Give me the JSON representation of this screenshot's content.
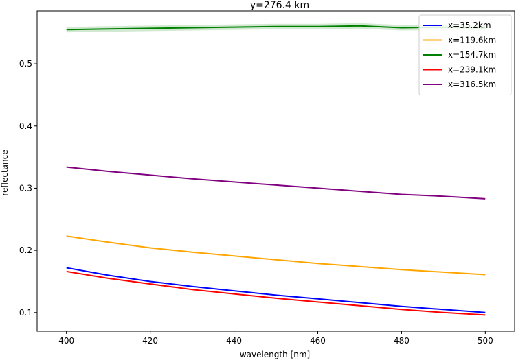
{
  "chart_data": {
    "type": "line",
    "title": "y=276.4 km",
    "xlabel": "wavelength [nm]",
    "ylabel": "reflectance",
    "xlim": [
      393,
      507
    ],
    "ylim": [
      0.07,
      0.585
    ],
    "xticks": [
      400,
      420,
      440,
      460,
      480,
      500
    ],
    "yticks": [
      0.1,
      0.2,
      0.3,
      0.4,
      0.5
    ],
    "grid": false,
    "legend_position": "top-right",
    "x": [
      400,
      410,
      420,
      430,
      440,
      450,
      460,
      470,
      480,
      490,
      500
    ],
    "series": [
      {
        "name": "x=35.2km",
        "color": "#0000ff",
        "values": [
          0.172,
          0.16,
          0.15,
          0.142,
          0.135,
          0.128,
          0.122,
          0.116,
          0.11,
          0.105,
          0.1
        ]
      },
      {
        "name": "x=119.6km",
        "color": "#ffa500",
        "values": [
          0.223,
          0.213,
          0.204,
          0.197,
          0.191,
          0.185,
          0.179,
          0.174,
          0.169,
          0.165,
          0.161
        ]
      },
      {
        "name": "x=154.7km",
        "color": "#008000",
        "values": [
          0.555,
          0.556,
          0.557,
          0.558,
          0.559,
          0.56,
          0.56,
          0.561,
          0.558,
          0.559,
          0.558
        ]
      },
      {
        "name": "x=239.1km",
        "color": "#ff0000",
        "values": [
          0.166,
          0.155,
          0.146,
          0.137,
          0.13,
          0.123,
          0.117,
          0.111,
          0.105,
          0.1,
          0.096
        ]
      },
      {
        "name": "x=316.5km",
        "color": "#800080",
        "values": [
          0.334,
          0.327,
          0.321,
          0.315,
          0.31,
          0.305,
          0.3,
          0.295,
          0.29,
          0.287,
          0.283
        ]
      }
    ]
  }
}
